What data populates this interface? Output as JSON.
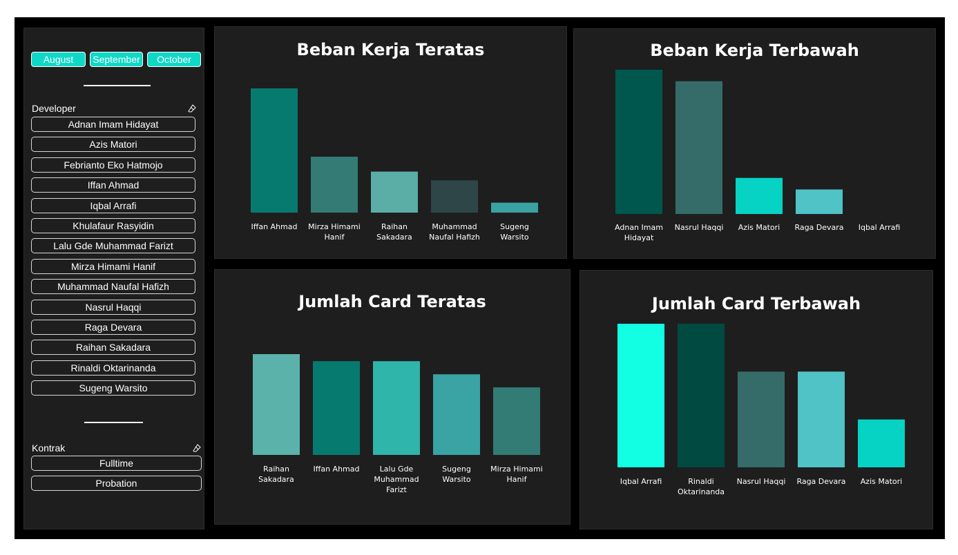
{
  "slicers": {
    "months": [
      "August",
      "September",
      "October"
    ],
    "developer": {
      "title": "Developer",
      "items": [
        "Adnan Imam Hidayat",
        "Azis Matori",
        "Febrianto Eko Hatmojo",
        "Iffan Ahmad",
        "Iqbal Arrafi",
        "Khulafaur Rasyidin",
        "Lalu Gde Muhammad Farizt",
        "Mirza Himami Hanif",
        "Muhammad Naufal Hafizh",
        "Nasrul Haqqi",
        "Raga Devara",
        "Raihan Sakadara",
        "Rinaldi Oktarinanda",
        "Sugeng Warsito"
      ]
    },
    "kontrak": {
      "title": "Kontrak",
      "items": [
        "Fulltime",
        "Probation"
      ]
    }
  },
  "chart_data": [
    {
      "type": "bar",
      "title": "Beban Kerja Teratas",
      "categories": [
        "Iffan Ahmad",
        "Mirza Himami Hanif",
        "Raihan Sakadara",
        "Muhammad Naufal Hafizh",
        "Sugeng Warsito"
      ],
      "values": [
        100,
        45,
        33,
        26,
        8
      ],
      "colors": [
        "#077a6f",
        "#337b74",
        "#5aaea5",
        "#2e4647",
        "#3ba2a3"
      ],
      "ylim": [
        0,
        100
      ]
    },
    {
      "type": "bar",
      "title": "Beban Kerja Terbawah",
      "categories": [
        "Adnan Imam Hidayat",
        "Nasrul Haqqi",
        "Azis Matori",
        "Raga Devara",
        "Iqbal Arrafi"
      ],
      "values": [
        100,
        92,
        25,
        17,
        0
      ],
      "colors": [
        "#00574d",
        "#356c6a",
        "#06d3c3",
        "#4fc3c6",
        "#1e1e1e"
      ],
      "ylim": [
        0,
        100
      ]
    },
    {
      "type": "bar",
      "title": "Jumlah Card Teratas",
      "categories": [
        "Raihan Sakadara",
        "Iffan Ahmad",
        "Lalu Gde Muhammad Farizt",
        "Sugeng Warsito",
        "Mirza Himami Hanif"
      ],
      "values": [
        100,
        93,
        93,
        80,
        67
      ],
      "colors": [
        "#5bb2aa",
        "#077a6f",
        "#2fb5aa",
        "#3aa3a3",
        "#327c75"
      ],
      "ylim": [
        0,
        100
      ]
    },
    {
      "type": "bar",
      "title": "Jumlah Card Terbawah",
      "categories": [
        "Iqbal Arrafi",
        "Rinaldi Oktarinanda",
        "Nasrul Haqqi",
        "Raga Devara",
        "Azis Matori"
      ],
      "values": [
        3,
        3,
        2,
        2,
        1
      ],
      "colors": [
        "#12ffe3",
        "#014a41",
        "#356c6a",
        "#4fc3c6",
        "#06d3c3"
      ],
      "ylim": [
        0,
        3
      ]
    }
  ]
}
